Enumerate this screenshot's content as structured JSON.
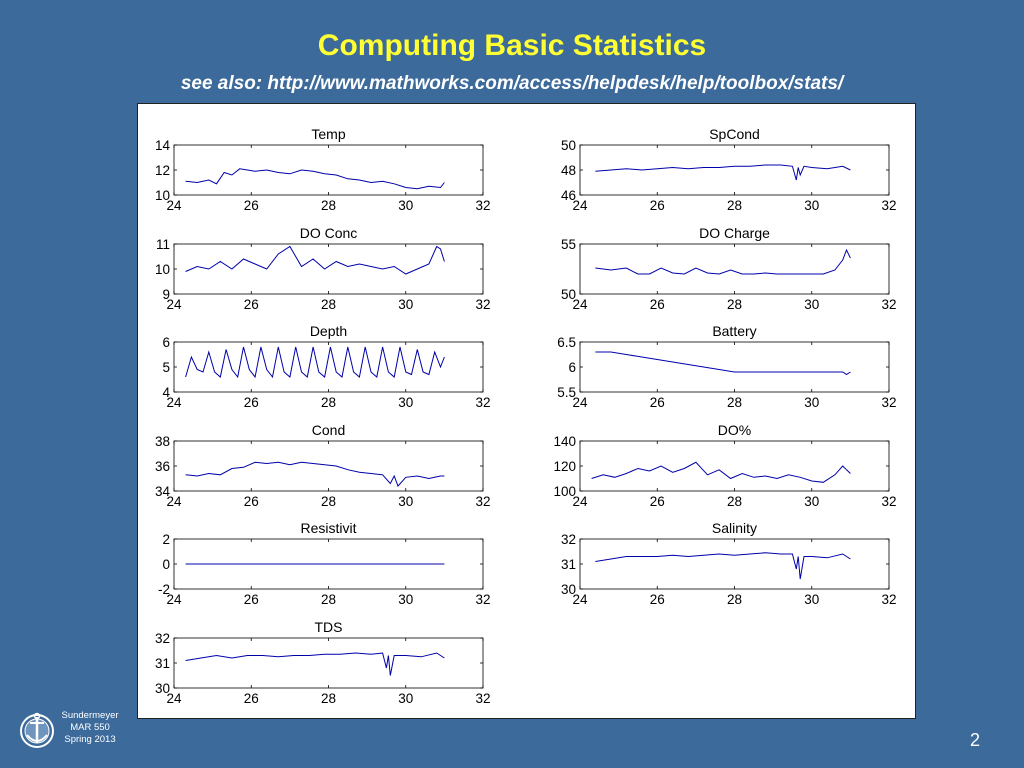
{
  "slide": {
    "title": "Computing Basic Statistics",
    "subtitle": "see also: http://www.mathworks.com/access/helpdesk/help/toolbox/stats/",
    "footer_lines": [
      "Sundermeyer",
      "MAR 550",
      "Spring 2013"
    ],
    "page_number": "2",
    "logo_icon": "anchor-seal-icon",
    "title_color": "#ffff33",
    "background_color": "#3b6a9b",
    "line_color": "#0000aa"
  },
  "chart_data": [
    {
      "type": "line",
      "title": "Temp",
      "xlim": [
        24,
        32
      ],
      "ylim": [
        10,
        14
      ],
      "xticks": [
        "24",
        "26",
        "28",
        "30",
        "32"
      ],
      "yticks": [
        "10",
        "12",
        "14"
      ],
      "series": [
        {
          "x": [
            24.3,
            24.6,
            24.9,
            25.1,
            25.3,
            25.5,
            25.7,
            25.9,
            26.1,
            26.4,
            26.7,
            27.0,
            27.3,
            27.6,
            27.9,
            28.2,
            28.5,
            28.8,
            29.1,
            29.4,
            29.7,
            30.0,
            30.3,
            30.6,
            30.9,
            31.0
          ],
          "y": [
            11.1,
            11.0,
            11.2,
            10.9,
            11.8,
            11.6,
            12.1,
            12.0,
            11.9,
            12.0,
            11.8,
            11.7,
            12.0,
            11.9,
            11.7,
            11.6,
            11.3,
            11.2,
            11.0,
            11.1,
            10.9,
            10.6,
            10.5,
            10.7,
            10.6,
            11.0
          ]
        }
      ]
    },
    {
      "type": "line",
      "title": "SpCond",
      "xlim": [
        24,
        32
      ],
      "ylim": [
        46,
        50
      ],
      "xticks": [
        "24",
        "26",
        "28",
        "30",
        "32"
      ],
      "yticks": [
        "46",
        "48",
        "50"
      ],
      "series": [
        {
          "x": [
            24.4,
            24.8,
            25.2,
            25.6,
            26.0,
            26.4,
            26.8,
            27.2,
            27.6,
            28.0,
            28.4,
            28.8,
            29.2,
            29.5,
            29.6,
            29.65,
            29.7,
            29.8,
            30.0,
            30.4,
            30.8,
            31.0
          ],
          "y": [
            47.9,
            48.0,
            48.1,
            48.0,
            48.1,
            48.2,
            48.1,
            48.2,
            48.2,
            48.3,
            48.3,
            48.4,
            48.4,
            48.3,
            47.2,
            48.2,
            47.6,
            48.3,
            48.2,
            48.1,
            48.3,
            48.0
          ]
        }
      ]
    },
    {
      "type": "line",
      "title": "DO Conc",
      "xlim": [
        24,
        32
      ],
      "ylim": [
        9,
        11
      ],
      "xticks": [
        "24",
        "26",
        "28",
        "30",
        "32"
      ],
      "yticks": [
        "9",
        "10",
        "11"
      ],
      "series": [
        {
          "x": [
            24.3,
            24.6,
            24.9,
            25.2,
            25.5,
            25.8,
            26.1,
            26.4,
            26.7,
            27.0,
            27.3,
            27.6,
            27.9,
            28.2,
            28.5,
            28.8,
            29.1,
            29.4,
            29.7,
            30.0,
            30.3,
            30.6,
            30.8,
            30.9,
            31.0
          ],
          "y": [
            9.9,
            10.1,
            10.0,
            10.3,
            10.0,
            10.4,
            10.2,
            10.0,
            10.6,
            10.9,
            10.1,
            10.4,
            10.0,
            10.3,
            10.1,
            10.2,
            10.1,
            10.0,
            10.1,
            9.8,
            10.0,
            10.2,
            10.9,
            10.8,
            10.3
          ]
        }
      ]
    },
    {
      "type": "line",
      "title": "DO Charge",
      "xlim": [
        24,
        32
      ],
      "ylim": [
        50,
        55
      ],
      "xticks": [
        "24",
        "26",
        "28",
        "30",
        "32"
      ],
      "yticks": [
        "50",
        "55"
      ],
      "series": [
        {
          "x": [
            24.4,
            24.8,
            25.2,
            25.5,
            25.8,
            26.1,
            26.4,
            26.7,
            27.0,
            27.3,
            27.6,
            27.9,
            28.2,
            28.5,
            28.8,
            29.1,
            29.4,
            29.7,
            30.0,
            30.3,
            30.6,
            30.8,
            30.9,
            31.0
          ],
          "y": [
            52.6,
            52.4,
            52.6,
            52.0,
            52.0,
            52.6,
            52.1,
            52.0,
            52.6,
            52.1,
            52.0,
            52.4,
            52.0,
            52.0,
            52.1,
            52.0,
            52.0,
            52.0,
            52.0,
            52.0,
            52.4,
            53.4,
            54.4,
            53.6
          ]
        }
      ]
    },
    {
      "type": "line",
      "title": "Depth",
      "xlim": [
        24,
        32
      ],
      "ylim": [
        4,
        6
      ],
      "xticks": [
        "24",
        "26",
        "28",
        "30",
        "32"
      ],
      "yticks": [
        "4",
        "5",
        "6"
      ],
      "series": [
        {
          "x": [
            24.3,
            24.45,
            24.6,
            24.75,
            24.9,
            25.05,
            25.2,
            25.35,
            25.5,
            25.65,
            25.8,
            25.95,
            26.1,
            26.25,
            26.4,
            26.55,
            26.7,
            26.85,
            27.0,
            27.15,
            27.3,
            27.45,
            27.6,
            27.75,
            27.9,
            28.05,
            28.2,
            28.35,
            28.5,
            28.65,
            28.8,
            28.95,
            29.1,
            29.25,
            29.4,
            29.55,
            29.7,
            29.85,
            30.0,
            30.15,
            30.3,
            30.45,
            30.6,
            30.75,
            30.9,
            31.0
          ],
          "y": [
            4.6,
            5.4,
            4.9,
            4.8,
            5.6,
            4.8,
            4.6,
            5.7,
            4.9,
            4.6,
            5.8,
            4.9,
            4.6,
            5.8,
            4.9,
            4.6,
            5.8,
            4.8,
            4.6,
            5.8,
            4.8,
            4.6,
            5.8,
            4.8,
            4.6,
            5.8,
            4.8,
            4.6,
            5.8,
            4.8,
            4.6,
            5.8,
            4.8,
            4.6,
            5.8,
            4.8,
            4.6,
            5.8,
            4.8,
            4.7,
            5.7,
            4.8,
            4.7,
            5.6,
            5.0,
            5.4
          ]
        }
      ]
    },
    {
      "type": "line",
      "title": "Battery",
      "xlim": [
        24,
        32
      ],
      "ylim": [
        5.5,
        6.5
      ],
      "xticks": [
        "24",
        "26",
        "28",
        "30",
        "32"
      ],
      "yticks": [
        "5.5",
        "6",
        "6.5"
      ],
      "series": [
        {
          "x": [
            24.4,
            24.8,
            25.2,
            25.6,
            26.0,
            26.4,
            26.8,
            27.2,
            27.6,
            28.0,
            28.4,
            28.8,
            29.2,
            29.6,
            30.0,
            30.4,
            30.8,
            30.9,
            31.0
          ],
          "y": [
            6.3,
            6.3,
            6.25,
            6.2,
            6.15,
            6.1,
            6.05,
            6.0,
            5.95,
            5.9,
            5.9,
            5.9,
            5.9,
            5.9,
            5.9,
            5.9,
            5.9,
            5.85,
            5.9
          ]
        }
      ]
    },
    {
      "type": "line",
      "title": "Cond",
      "xlim": [
        24,
        32
      ],
      "ylim": [
        34,
        38
      ],
      "xticks": [
        "24",
        "26",
        "28",
        "30",
        "32"
      ],
      "yticks": [
        "34",
        "36",
        "38"
      ],
      "series": [
        {
          "x": [
            24.3,
            24.6,
            24.9,
            25.2,
            25.5,
            25.8,
            26.1,
            26.4,
            26.7,
            27.0,
            27.3,
            27.6,
            27.9,
            28.2,
            28.5,
            28.8,
            29.1,
            29.4,
            29.6,
            29.7,
            29.8,
            30.0,
            30.3,
            30.6,
            30.9,
            31.0
          ],
          "y": [
            35.3,
            35.2,
            35.4,
            35.3,
            35.8,
            35.9,
            36.3,
            36.2,
            36.3,
            36.1,
            36.3,
            36.2,
            36.1,
            36.0,
            35.7,
            35.5,
            35.4,
            35.3,
            34.6,
            35.2,
            34.4,
            35.1,
            35.2,
            35.0,
            35.2,
            35.2
          ]
        }
      ]
    },
    {
      "type": "line",
      "title": "DO%",
      "xlim": [
        24,
        32
      ],
      "ylim": [
        100,
        140
      ],
      "xticks": [
        "24",
        "26",
        "28",
        "30",
        "32"
      ],
      "yticks": [
        "100",
        "120",
        "140"
      ],
      "series": [
        {
          "x": [
            24.3,
            24.6,
            24.9,
            25.2,
            25.5,
            25.8,
            26.1,
            26.4,
            26.7,
            27.0,
            27.3,
            27.6,
            27.9,
            28.2,
            28.5,
            28.8,
            29.1,
            29.4,
            29.7,
            30.0,
            30.3,
            30.6,
            30.8,
            30.9,
            31.0
          ],
          "y": [
            110,
            113,
            111,
            114,
            118,
            116,
            120,
            115,
            118,
            123,
            113,
            117,
            110,
            114,
            111,
            112,
            110,
            113,
            111,
            108,
            107,
            113,
            120,
            117,
            114
          ]
        }
      ]
    },
    {
      "type": "line",
      "title": "Resistivit",
      "xlim": [
        24,
        32
      ],
      "ylim": [
        -2,
        2
      ],
      "xticks": [
        "24",
        "26",
        "28",
        "30",
        "32"
      ],
      "yticks": [
        "-2",
        "0",
        "2"
      ],
      "series": [
        {
          "x": [
            24.3,
            31.0
          ],
          "y": [
            0,
            0
          ]
        }
      ]
    },
    {
      "type": "line",
      "title": "Salinity",
      "xlim": [
        24,
        32
      ],
      "ylim": [
        30,
        32
      ],
      "xticks": [
        "24",
        "26",
        "28",
        "30",
        "32"
      ],
      "yticks": [
        "30",
        "31",
        "32"
      ],
      "series": [
        {
          "x": [
            24.4,
            24.8,
            25.2,
            25.6,
            26.0,
            26.4,
            26.8,
            27.2,
            27.6,
            28.0,
            28.4,
            28.8,
            29.2,
            29.5,
            29.6,
            29.65,
            29.7,
            29.8,
            30.0,
            30.4,
            30.8,
            31.0
          ],
          "y": [
            31.1,
            31.2,
            31.3,
            31.3,
            31.3,
            31.35,
            31.3,
            31.35,
            31.4,
            31.35,
            31.4,
            31.45,
            31.4,
            31.4,
            30.8,
            31.3,
            30.4,
            31.3,
            31.3,
            31.25,
            31.4,
            31.2
          ]
        }
      ]
    },
    {
      "type": "line",
      "title": "TDS",
      "xlim": [
        24,
        32
      ],
      "ylim": [
        30,
        32
      ],
      "xticks": [
        "24",
        "26",
        "28",
        "30",
        "32"
      ],
      "yticks": [
        "30",
        "31",
        "32"
      ],
      "series": [
        {
          "x": [
            24.3,
            24.7,
            25.1,
            25.5,
            25.9,
            26.3,
            26.7,
            27.1,
            27.5,
            27.9,
            28.3,
            28.7,
            29.1,
            29.4,
            29.5,
            29.55,
            29.6,
            29.7,
            30.0,
            30.4,
            30.8,
            31.0
          ],
          "y": [
            31.1,
            31.2,
            31.3,
            31.2,
            31.3,
            31.3,
            31.25,
            31.3,
            31.3,
            31.35,
            31.35,
            31.4,
            31.35,
            31.4,
            30.8,
            31.3,
            30.5,
            31.3,
            31.3,
            31.25,
            31.4,
            31.2
          ]
        }
      ]
    }
  ]
}
